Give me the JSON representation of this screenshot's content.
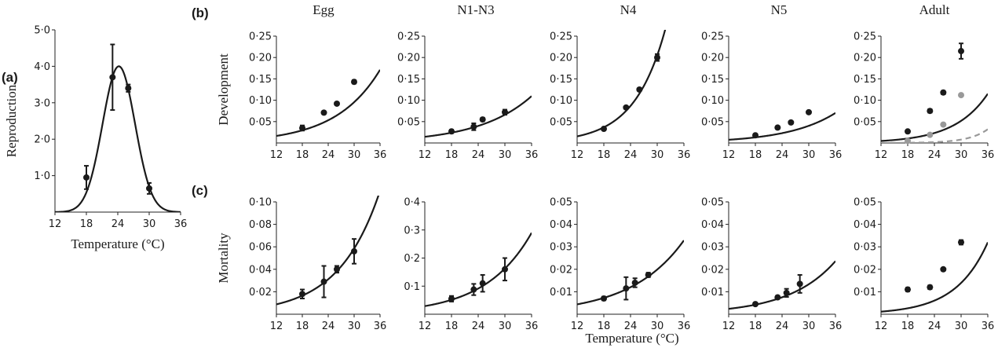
{
  "panel_letters": [
    "(a)",
    "(b)",
    "(c)"
  ],
  "column_titles": [
    "Egg",
    "N1-N3",
    "N4",
    "N5",
    "Adult"
  ],
  "shared_xlabel": "Temperature (°C)",
  "colors": {
    "curve": "#1a1a1a",
    "points": "#1a1a1a",
    "secondary": "#999999"
  },
  "chart_data": [
    {
      "id": "a",
      "type": "scatter",
      "fit": "gaussian",
      "ylabel": "Reproduction",
      "xlabel": "Temperature (°C)",
      "xlim": [
        12,
        36
      ],
      "ylim": [
        0,
        5
      ],
      "xticks": [
        "12",
        "18",
        "24",
        "30",
        "36"
      ],
      "yticks": [
        "1·0",
        "2·0",
        "3·0",
        "4·0",
        "5·0"
      ],
      "curve": {
        "a": 4.0,
        "mu": 24.2,
        "sigma": 3.1
      },
      "points": [
        {
          "x": 18,
          "y": 0.95,
          "err": 0.32
        },
        {
          "x": 23,
          "y": 3.7,
          "err": 0.9
        },
        {
          "x": 26,
          "y": 3.4,
          "err": 0.1
        },
        {
          "x": 30,
          "y": 0.65,
          "err": 0.15
        }
      ]
    },
    {
      "id": "b-egg",
      "type": "scatter",
      "fit": "exponential",
      "ylabel": "Development",
      "xlim": [
        12,
        36
      ],
      "ylim": [
        0,
        0.25
      ],
      "xticks": [
        "12",
        "18",
        "24",
        "30",
        "36"
      ],
      "yticks": [
        "0·05",
        "0·10",
        "0·15",
        "0·20",
        "0·25"
      ],
      "curve": {
        "a": 0.0165,
        "b": 0.0975
      },
      "points": [
        {
          "x": 18,
          "y": 0.035,
          "err": 0.006
        },
        {
          "x": 23,
          "y": 0.071,
          "err": 0.003
        },
        {
          "x": 26,
          "y": 0.092,
          "err": 0.003
        },
        {
          "x": 30,
          "y": 0.143,
          "err": 0.004
        }
      ]
    },
    {
      "id": "b-n1n3",
      "type": "scatter",
      "fit": "exponential",
      "xlim": [
        12,
        36
      ],
      "ylim": [
        0,
        0.25
      ],
      "xticks": [
        "12",
        "18",
        "24",
        "30",
        "36"
      ],
      "yticks": [
        "0·05",
        "0·10",
        "0·15",
        "0·20",
        "0·25"
      ],
      "curve": {
        "a": 0.0145,
        "b": 0.0843
      },
      "points": [
        {
          "x": 18,
          "y": 0.027,
          "err": 0.004
        },
        {
          "x": 23,
          "y": 0.038,
          "err": 0.008
        },
        {
          "x": 25,
          "y": 0.055,
          "err": 0.004
        },
        {
          "x": 30,
          "y": 0.072,
          "err": 0.006
        }
      ]
    },
    {
      "id": "b-n4",
      "type": "scatter",
      "fit": "exponential",
      "xlim": [
        12,
        36
      ],
      "ylim": [
        0,
        0.25
      ],
      "xticks": [
        "12",
        "18",
        "24",
        "30",
        "36"
      ],
      "yticks": [
        "0·05",
        "0·10",
        "0·15",
        "0·20",
        "0·25"
      ],
      "curve": {
        "a": 0.0155,
        "b": 0.1435
      },
      "points": [
        {
          "x": 18,
          "y": 0.033,
          "err": 0.003
        },
        {
          "x": 23,
          "y": 0.083,
          "err": 0.003
        },
        {
          "x": 26,
          "y": 0.125,
          "err": 0.003
        },
        {
          "x": 30,
          "y": 0.2,
          "err": 0.008
        }
      ]
    },
    {
      "id": "b-n5",
      "type": "scatter",
      "fit": "exponential",
      "xlim": [
        12,
        36
      ],
      "ylim": [
        0,
        0.25
      ],
      "xticks": [
        "12",
        "18",
        "24",
        "30",
        "36"
      ],
      "yticks": [
        "0·05",
        "0·10",
        "0·15",
        "0·20",
        "0·25"
      ],
      "curve": {
        "a": 0.0075,
        "b": 0.0932
      },
      "points": [
        {
          "x": 18,
          "y": 0.018,
          "err": 0.003
        },
        {
          "x": 23,
          "y": 0.036,
          "err": 0.003
        },
        {
          "x": 26,
          "y": 0.048,
          "err": 0.003
        },
        {
          "x": 30,
          "y": 0.072,
          "err": 0.003
        }
      ]
    },
    {
      "id": "b-adult",
      "type": "scatter",
      "fit": "exponential",
      "xlim": [
        12,
        36
      ],
      "ylim": [
        0,
        0.25
      ],
      "xticks": [
        "12",
        "18",
        "24",
        "30",
        "36"
      ],
      "yticks": [
        "0·05",
        "0·10",
        "0·15",
        "0·20",
        "0·25"
      ],
      "curve": {
        "a": 0.0047,
        "b": 0.1333
      },
      "points": [
        {
          "x": 18,
          "y": 0.027,
          "err": 0.003
        },
        {
          "x": 23,
          "y": 0.075,
          "err": 0.004
        },
        {
          "x": 26,
          "y": 0.118,
          "err": 0.004
        },
        {
          "x": 30,
          "y": 0.215,
          "err": 0.018
        }
      ],
      "secondary_curve": {
        "a": 0.00012,
        "b": 0.233,
        "style": "dashed"
      },
      "secondary_points": [
        {
          "x": 18,
          "y": 0.005
        },
        {
          "x": 23,
          "y": 0.019
        },
        {
          "x": 26,
          "y": 0.043
        },
        {
          "x": 30,
          "y": 0.112
        }
      ]
    },
    {
      "id": "c-egg",
      "type": "scatter",
      "fit": "exponential",
      "ylabel": "Mortality",
      "xlim": [
        12,
        36
      ],
      "ylim": [
        0,
        0.1
      ],
      "xticks": [
        "12",
        "18",
        "24",
        "30",
        "36"
      ],
      "yticks": [
        "0·02",
        "0·04",
        "0·06",
        "0·08",
        "0·10"
      ],
      "curve": {
        "a": 0.0088,
        "b": 0.1052
      },
      "points": [
        {
          "x": 18,
          "y": 0.018,
          "err": 0.004
        },
        {
          "x": 23,
          "y": 0.029,
          "err": 0.014
        },
        {
          "x": 26,
          "y": 0.04,
          "err": 0.003
        },
        {
          "x": 30,
          "y": 0.056,
          "err": 0.011
        }
      ]
    },
    {
      "id": "c-n1n3",
      "type": "scatter",
      "fit": "exponential",
      "xlim": [
        12,
        36
      ],
      "ylim": [
        0,
        0.4
      ],
      "xticks": [
        "12",
        "18",
        "24",
        "30",
        "36"
      ],
      "yticks": [
        "0·1",
        "0·2",
        "0·3",
        "0·4"
      ],
      "curve": {
        "a": 0.0288,
        "b": 0.0962
      },
      "points": [
        {
          "x": 18,
          "y": 0.055,
          "err": 0.01
        },
        {
          "x": 23,
          "y": 0.088,
          "err": 0.02
        },
        {
          "x": 25,
          "y": 0.11,
          "err": 0.03
        },
        {
          "x": 30,
          "y": 0.16,
          "err": 0.04
        }
      ]
    },
    {
      "id": "c-n4",
      "type": "scatter",
      "fit": "exponential",
      "xlim": [
        12,
        36
      ],
      "ylim": [
        0,
        0.05
      ],
      "xticks": [
        "12",
        "18",
        "24",
        "30",
        "36"
      ],
      "yticks": [
        "0·01",
        "0·02",
        "0·03",
        "0·04",
        "0·05"
      ],
      "curve": {
        "a": 0.0044,
        "b": 0.0838
      },
      "points": [
        {
          "x": 18,
          "y": 0.007,
          "err": 0.0008
        },
        {
          "x": 23,
          "y": 0.0115,
          "err": 0.005
        },
        {
          "x": 25,
          "y": 0.014,
          "err": 0.002
        },
        {
          "x": 28,
          "y": 0.0175,
          "err": 0.001
        }
      ]
    },
    {
      "id": "c-n5",
      "type": "scatter",
      "fit": "exponential",
      "xlim": [
        12,
        36
      ],
      "ylim": [
        0,
        0.05
      ],
      "xticks": [
        "12",
        "18",
        "24",
        "30",
        "36"
      ],
      "yticks": [
        "0·01",
        "0·02",
        "0·03",
        "0·04",
        "0·05"
      ],
      "curve": {
        "a": 0.0024,
        "b": 0.0953
      },
      "points": [
        {
          "x": 18,
          "y": 0.0045,
          "err": 0.0006
        },
        {
          "x": 23,
          "y": 0.0075,
          "err": 0.0007
        },
        {
          "x": 25,
          "y": 0.0095,
          "err": 0.0018
        },
        {
          "x": 28,
          "y": 0.0135,
          "err": 0.004
        }
      ]
    },
    {
      "id": "c-adult",
      "type": "scatter",
      "fit": "exponential",
      "xlim": [
        12,
        36
      ],
      "ylim": [
        0,
        0.05
      ],
      "xticks": [
        "12",
        "18",
        "24",
        "30",
        "36"
      ],
      "yticks": [
        "0·01",
        "0·02",
        "0·03",
        "0·04",
        "0·05"
      ],
      "curve": {
        "a": 0.00115,
        "b": 0.1386
      },
      "points": [
        {
          "x": 18,
          "y": 0.011,
          "err": 0.0008
        },
        {
          "x": 23,
          "y": 0.012,
          "err": 0.0008
        },
        {
          "x": 26,
          "y": 0.02,
          "err": 0.0006
        },
        {
          "x": 30,
          "y": 0.032,
          "err": 0.001
        }
      ]
    }
  ]
}
